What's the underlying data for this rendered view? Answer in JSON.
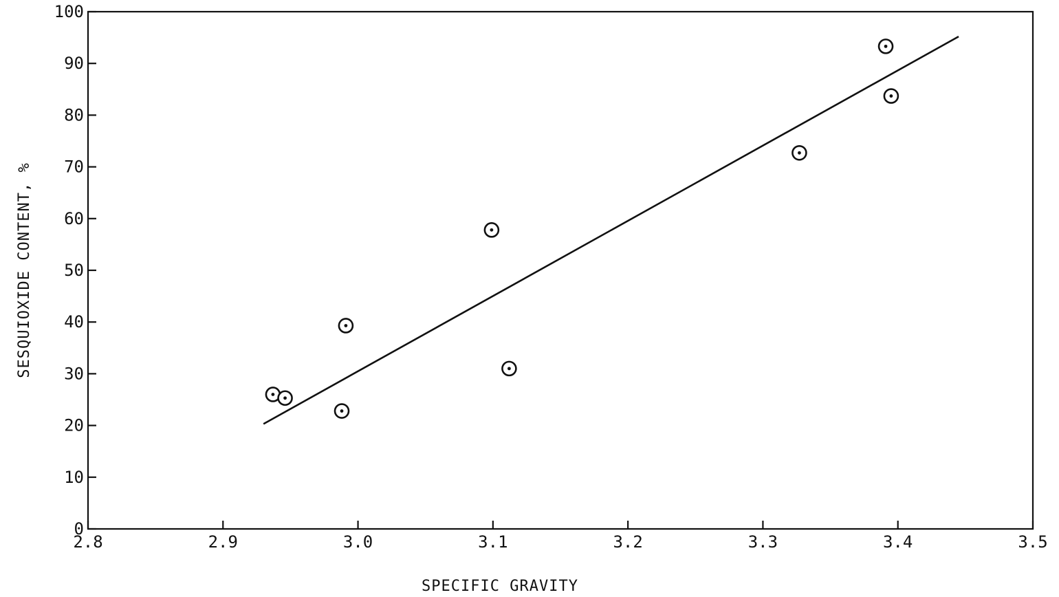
{
  "chart_data": {
    "type": "scatter",
    "xlabel": "SPECIFIC GRAVITY",
    "ylabel": "SESQUIOXIDE CONTENT, %",
    "xlim": [
      2.8,
      3.5
    ],
    "ylim": [
      0,
      100
    ],
    "x_ticks": [
      2.8,
      2.9,
      3.0,
      3.1,
      3.2,
      3.3,
      3.4,
      3.5
    ],
    "x_tick_labels": [
      "2.8",
      "2.9",
      "3.0",
      "3.1",
      "3.2",
      "3.3",
      "3.4",
      "3.5"
    ],
    "y_ticks": [
      0,
      10,
      20,
      30,
      40,
      50,
      60,
      70,
      80,
      90,
      100
    ],
    "y_tick_labels": [
      "0",
      "10",
      "20",
      "30",
      "40",
      "50",
      "60",
      "70",
      "80",
      "90",
      "100"
    ],
    "grid": false,
    "marker": "circled-dot",
    "points": [
      {
        "x": 2.937,
        "y": 26
      },
      {
        "x": 2.946,
        "y": 25.3
      },
      {
        "x": 2.988,
        "y": 22.8
      },
      {
        "x": 2.991,
        "y": 39.3
      },
      {
        "x": 3.099,
        "y": 57.8
      },
      {
        "x": 3.112,
        "y": 31
      },
      {
        "x": 3.327,
        "y": 72.7
      },
      {
        "x": 3.391,
        "y": 93.3
      },
      {
        "x": 3.395,
        "y": 83.7
      }
    ],
    "fit_line": {
      "start": {
        "x": 2.93,
        "y": 20.3
      },
      "end": {
        "x": 3.445,
        "y": 95.2
      }
    }
  }
}
